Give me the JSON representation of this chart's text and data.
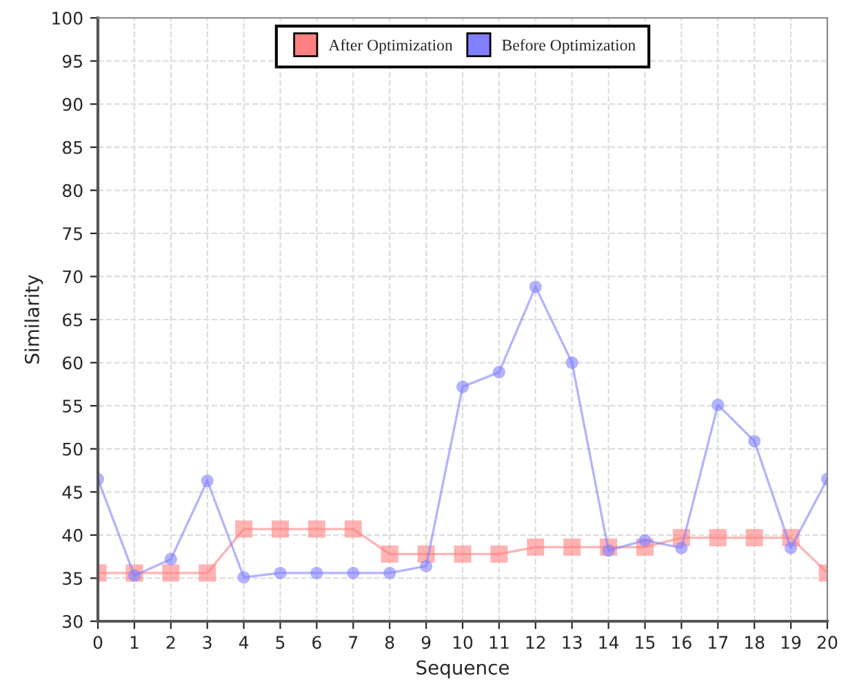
{
  "chart_data": {
    "type": "line",
    "xlabel": "Sequence",
    "ylabel": "Similarity",
    "x": [
      0,
      1,
      2,
      3,
      4,
      5,
      6,
      7,
      8,
      9,
      10,
      11,
      12,
      13,
      14,
      15,
      16,
      17,
      18,
      19,
      20
    ],
    "xlim": [
      0,
      20
    ],
    "xticks": [
      0,
      1,
      2,
      3,
      4,
      5,
      6,
      7,
      8,
      9,
      10,
      11,
      12,
      13,
      14,
      15,
      16,
      17,
      18,
      19,
      20
    ],
    "ylim": [
      30,
      100
    ],
    "yticks": [
      30,
      35,
      40,
      45,
      50,
      55,
      60,
      65,
      70,
      75,
      80,
      85,
      90,
      95,
      100
    ],
    "grid": true,
    "legend": "top",
    "line_style": "solid",
    "series": [
      {
        "name": "After Optimization",
        "color": "#ff8080",
        "marker": "square",
        "values": [
          35.6,
          35.6,
          35.6,
          35.6,
          40.7,
          40.7,
          40.7,
          40.7,
          37.8,
          37.8,
          37.8,
          37.8,
          38.6,
          38.6,
          38.6,
          38.6,
          39.7,
          39.7,
          39.7,
          39.7,
          35.6
        ]
      },
      {
        "name": "Before Optimization",
        "color": "#8080ff",
        "marker": "circle",
        "values": [
          46.5,
          35.3,
          37.2,
          46.3,
          35.1,
          35.6,
          35.6,
          35.6,
          35.6,
          36.4,
          57.2,
          58.9,
          68.8,
          60.0,
          38.2,
          39.4,
          38.5,
          55.1,
          50.9,
          38.5,
          46.5
        ]
      }
    ]
  }
}
